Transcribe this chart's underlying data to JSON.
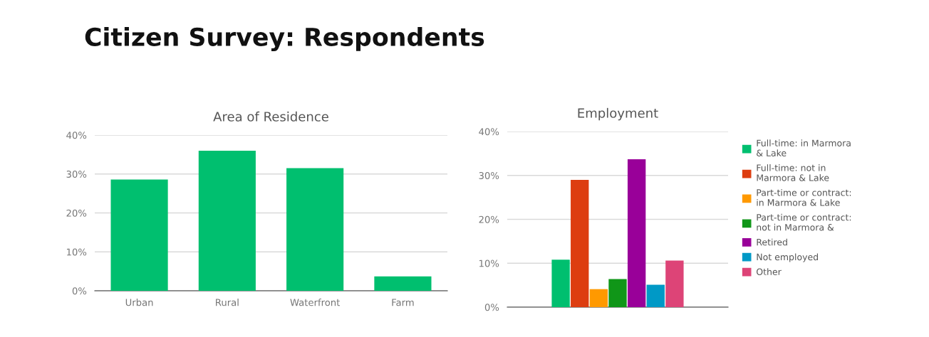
{
  "chart_data": [
    {
      "type": "bar",
      "title": "Area of Residence",
      "annotations": [
        "Citizen Survey: Respondents"
      ],
      "categories": [
        "Urban",
        "Rural",
        "Waterfront",
        "Farm"
      ],
      "values": [
        28.6,
        36.0,
        31.5,
        3.7
      ],
      "color": "#00bf6f",
      "ylim": [
        0,
        40
      ],
      "yticks": [
        {
          "value": 0,
          "label": "0%"
        },
        {
          "value": 10,
          "label": "10%"
        },
        {
          "value": 20,
          "label": "20%"
        },
        {
          "value": 30,
          "label": "30%"
        },
        {
          "value": 40,
          "label": "40%"
        }
      ],
      "grid": "y",
      "legend": false
    },
    {
      "type": "bar",
      "title": "Employment",
      "categories": [
        null
      ],
      "series": [
        {
          "name": "Full-time: in Marmora\n& Lake",
          "color": "#00bf6f",
          "values": [
            10.8
          ]
        },
        {
          "name": "Full-time: not in\nMarmora & Lake",
          "color": "#dd3d10",
          "values": [
            29.0
          ]
        },
        {
          "name": "Part-time or contract:\nin Marmora & Lake",
          "color": "#ff9900",
          "values": [
            4.1
          ]
        },
        {
          "name": "Part-time or contract:\nnot in Marmora &",
          "color": "#109618",
          "values": [
            6.4
          ]
        },
        {
          "name": "Retired",
          "color": "#990099",
          "values": [
            33.7
          ]
        },
        {
          "name": "Not employed",
          "color": "#0099c6",
          "values": [
            5.1
          ]
        },
        {
          "name": "Other",
          "color": "#dd4477",
          "values": [
            10.6
          ]
        }
      ],
      "ylim": [
        0,
        40
      ],
      "yticks": [
        {
          "value": 0,
          "label": "0%"
        },
        {
          "value": 10,
          "label": "10%"
        },
        {
          "value": 20,
          "label": "20%"
        },
        {
          "value": 30,
          "label": "30%"
        },
        {
          "value": 40,
          "label": "40%"
        }
      ],
      "grid": "y",
      "legend": "right"
    }
  ]
}
